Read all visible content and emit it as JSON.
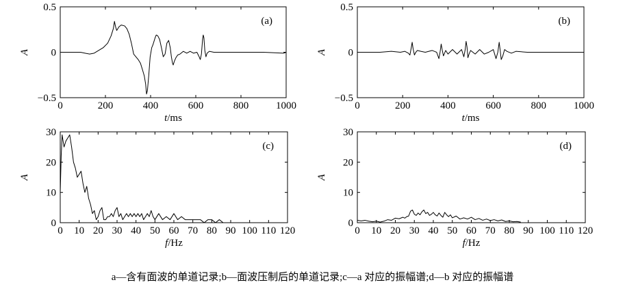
{
  "caption": "a—含有面波的单道记录;b—面波压制后的单道记录;c—a 对应的振幅谱;d—b 对应的振幅谱",
  "chart_data": [
    {
      "type": "line",
      "panel_label": "(a)",
      "ylabel": "A",
      "xlabel": {
        "var": "t",
        "unit": "/ms"
      },
      "xlim": [
        0,
        1000
      ],
      "ylim": [
        -0.5,
        0.5
      ],
      "xticks": [
        0,
        200,
        400,
        600,
        800,
        1000
      ],
      "yticks": [
        -0.5,
        0,
        0.5
      ],
      "series": [
        {
          "x": [
            0,
            90,
            110,
            130,
            150,
            170,
            190,
            210,
            225,
            235,
            240,
            245,
            250,
            260,
            270,
            285,
            295,
            305,
            315,
            325,
            335,
            345,
            355,
            365,
            372,
            378,
            382,
            386,
            392,
            398,
            405,
            410,
            415,
            420,
            425,
            432,
            440,
            448,
            456,
            464,
            472,
            480,
            487,
            492,
            497,
            500,
            505,
            512,
            520,
            530,
            545,
            560,
            575,
            590,
            605,
            615,
            620,
            625,
            630,
            633,
            636,
            640,
            645,
            650,
            660,
            680,
            720,
            800,
            900,
            990,
            1000
          ],
          "y": [
            0,
            0,
            -0.01,
            -0.02,
            -0.01,
            0.02,
            0.05,
            0.1,
            0.18,
            0.26,
            0.34,
            0.28,
            0.24,
            0.28,
            0.3,
            0.29,
            0.26,
            0.2,
            0.1,
            -0.02,
            -0.05,
            -0.08,
            -0.12,
            -0.2,
            -0.26,
            -0.35,
            -0.46,
            -0.42,
            -0.25,
            -0.05,
            0.05,
            0.08,
            0.12,
            0.16,
            0.19,
            0.18,
            0.14,
            0.05,
            -0.05,
            -0.02,
            0.1,
            0.13,
            0.05,
            -0.05,
            -0.12,
            -0.14,
            -0.1,
            -0.06,
            -0.03,
            -0.02,
            0.01,
            -0.01,
            0.01,
            -0.01,
            0.0,
            -0.05,
            -0.08,
            -0.02,
            0.14,
            0.19,
            0.16,
            0.02,
            -0.05,
            -0.01,
            0.01,
            0.0,
            0.0,
            0.0,
            0.0,
            -0.01,
            0.0
          ]
        }
      ]
    },
    {
      "type": "line",
      "panel_label": "(b)",
      "ylabel": "A",
      "xlabel": {
        "var": "t",
        "unit": "/ms"
      },
      "xlim": [
        0,
        1000
      ],
      "ylim": [
        -0.5,
        0.5
      ],
      "xticks": [
        0,
        200,
        400,
        600,
        800,
        1000
      ],
      "yticks": [
        -0.5,
        0,
        0.5
      ],
      "series": [
        {
          "x": [
            0,
            100,
            150,
            190,
            210,
            225,
            232,
            238,
            242,
            246,
            252,
            258,
            265,
            280,
            300,
            330,
            350,
            360,
            365,
            370,
            375,
            380,
            390,
            400,
            420,
            440,
            460,
            470,
            476,
            480,
            484,
            488,
            493,
            500,
            520,
            540,
            560,
            580,
            600,
            612,
            620,
            626,
            630,
            635,
            642,
            650,
            660,
            680,
            700,
            750,
            800,
            900,
            1000
          ],
          "y": [
            0,
            0,
            0.01,
            0.0,
            0.01,
            -0.01,
            -0.03,
            0.05,
            0.11,
            0.04,
            -0.03,
            0.0,
            0.02,
            0.01,
            0.0,
            0.02,
            0.0,
            -0.07,
            0.0,
            0.09,
            0.02,
            -0.04,
            0.02,
            -0.02,
            0.03,
            -0.02,
            0.03,
            -0.05,
            0.03,
            0.12,
            0.06,
            -0.06,
            -0.02,
            0.02,
            -0.02,
            0.03,
            -0.02,
            0.0,
            0.03,
            -0.07,
            0.0,
            0.11,
            0.03,
            -0.08,
            -0.04,
            0.03,
            0.01,
            -0.01,
            0.01,
            0.0,
            0.0,
            0.0,
            0.0
          ]
        }
      ]
    },
    {
      "type": "line",
      "panel_label": "(c)",
      "ylabel": "A",
      "xlabel": {
        "var": "f",
        "unit": "/Hz"
      },
      "xlim": [
        0,
        120
      ],
      "ylim": [
        0,
        30
      ],
      "xticks": [
        0,
        10,
        20,
        30,
        40,
        50,
        60,
        70,
        80,
        90,
        100,
        110,
        120
      ],
      "yticks": [
        0,
        10,
        20,
        30
      ],
      "series": [
        {
          "x": [
            0,
            0.5,
            1,
            1.5,
            2,
            3,
            4,
            5,
            6,
            7,
            8,
            9,
            10,
            11,
            12,
            13,
            14,
            15,
            16,
            17,
            18,
            19,
            20,
            21,
            22,
            23,
            24,
            25,
            26,
            27,
            28,
            29,
            30,
            31,
            32,
            33,
            34,
            35,
            36,
            37,
            38,
            39,
            40,
            41,
            42,
            43,
            44,
            45,
            46,
            47,
            48,
            49,
            50,
            52,
            54,
            56,
            58,
            60,
            62,
            64,
            66,
            68,
            70,
            72,
            74,
            76,
            78,
            80,
            82,
            84,
            86
          ],
          "y": [
            10,
            22,
            29,
            27,
            25,
            27,
            28,
            29,
            25,
            20,
            18,
            15,
            16,
            17,
            13,
            10,
            12,
            8,
            6,
            3,
            4,
            1,
            2,
            4,
            5,
            1,
            1,
            2,
            2,
            3,
            2,
            4,
            5,
            2,
            3,
            1,
            2,
            3,
            2,
            3,
            2,
            3,
            2,
            3,
            2,
            3,
            1,
            2,
            3,
            2,
            4,
            2,
            1,
            3,
            1,
            2,
            1,
            3,
            1,
            2,
            1,
            1,
            1,
            1,
            1,
            0,
            1,
            1,
            0,
            1,
            0
          ]
        }
      ]
    },
    {
      "type": "line",
      "panel_label": "(d)",
      "ylabel": "A",
      "xlabel": {
        "var": "f",
        "unit": "/Hz"
      },
      "xlim": [
        0,
        120
      ],
      "ylim": [
        0,
        30
      ],
      "xticks": [
        0,
        10,
        20,
        30,
        40,
        50,
        60,
        70,
        80,
        90,
        100,
        110,
        120
      ],
      "yticks": [
        0,
        10,
        20,
        30
      ],
      "series": [
        {
          "x": [
            0,
            2,
            4,
            6,
            8,
            10,
            12,
            14,
            16,
            18,
            20,
            22,
            24,
            25,
            26,
            27,
            28,
            29,
            30,
            31,
            32,
            33,
            34,
            35,
            36,
            37,
            38,
            39,
            40,
            41,
            42,
            43,
            44,
            45,
            46,
            47,
            48,
            49,
            50,
            52,
            54,
            56,
            58,
            60,
            62,
            64,
            66,
            68,
            70,
            72,
            74,
            76,
            78,
            80,
            82,
            84,
            86
          ],
          "y": [
            0.8,
            0.6,
            0.8,
            0.5,
            0.3,
            0.5,
            0.2,
            0.5,
            1,
            0.8,
            1.5,
            1.3,
            1.8,
            1.5,
            2,
            2.2,
            3.8,
            4.2,
            2.8,
            2.4,
            3.2,
            2.6,
            3.6,
            4.2,
            3,
            3.4,
            2.4,
            2.8,
            3.4,
            2.6,
            2.2,
            3.2,
            2.4,
            1.8,
            3.4,
            2.6,
            2,
            2.6,
            1.6,
            2.2,
            1.2,
            1.6,
            1.2,
            1.8,
            1,
            1.4,
            0.8,
            1.2,
            0.7,
            1,
            0.6,
            0.9,
            0.4,
            0.6,
            0.3,
            0.4,
            0.2
          ]
        }
      ]
    }
  ]
}
